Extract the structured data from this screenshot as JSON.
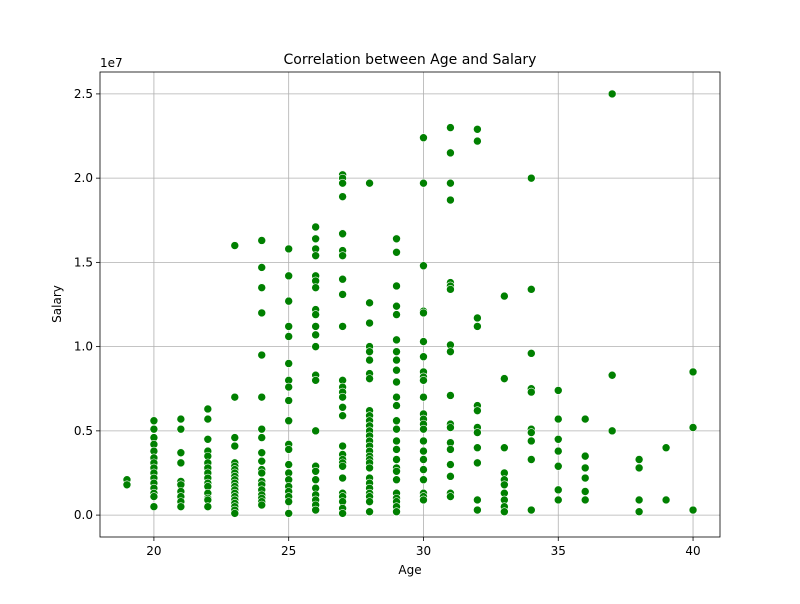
{
  "chart_data": {
    "type": "scatter",
    "title": "Correlation between Age and Salary",
    "xlabel": "Age",
    "ylabel": "Salary",
    "y_offset_label": "1e7",
    "xlim": [
      18,
      41
    ],
    "ylim": [
      -1300000,
      26300000
    ],
    "x_ticks": [
      20,
      25,
      30,
      35,
      40
    ],
    "x_tick_labels": [
      "20",
      "25",
      "30",
      "35",
      "40"
    ],
    "y_ticks": [
      0,
      5000000,
      10000000,
      15000000,
      20000000,
      25000000
    ],
    "y_tick_labels": [
      "0.0",
      "0.5",
      "1.0",
      "1.5",
      "2.0",
      "2.5"
    ],
    "grid": true,
    "marker_color": "#008000",
    "points": [
      [
        19,
        2100000
      ],
      [
        19,
        1800000
      ],
      [
        20,
        5600000
      ],
      [
        20,
        5100000
      ],
      [
        20,
        4600000
      ],
      [
        20,
        4200000
      ],
      [
        20,
        3800000
      ],
      [
        20,
        3400000
      ],
      [
        20,
        3100000
      ],
      [
        20,
        2800000
      ],
      [
        20,
        2500000
      ],
      [
        20,
        2200000
      ],
      [
        20,
        1900000
      ],
      [
        20,
        1600000
      ],
      [
        20,
        1300000
      ],
      [
        20,
        1100000
      ],
      [
        20,
        500000
      ],
      [
        21,
        5700000
      ],
      [
        21,
        5100000
      ],
      [
        21,
        3700000
      ],
      [
        21,
        3100000
      ],
      [
        21,
        2000000
      ],
      [
        21,
        1800000
      ],
      [
        21,
        1400000
      ],
      [
        21,
        1100000
      ],
      [
        21,
        800000
      ],
      [
        21,
        500000
      ],
      [
        22,
        6300000
      ],
      [
        22,
        5700000
      ],
      [
        22,
        4500000
      ],
      [
        22,
        3800000
      ],
      [
        22,
        3500000
      ],
      [
        22,
        3100000
      ],
      [
        22,
        2800000
      ],
      [
        22,
        2500000
      ],
      [
        22,
        2200000
      ],
      [
        22,
        1900000
      ],
      [
        22,
        1700000
      ],
      [
        22,
        1300000
      ],
      [
        22,
        1000000
      ],
      [
        22,
        900000
      ],
      [
        22,
        500000
      ],
      [
        23,
        16000000
      ],
      [
        23,
        7000000
      ],
      [
        23,
        4600000
      ],
      [
        23,
        4100000
      ],
      [
        23,
        3100000
      ],
      [
        23,
        2900000
      ],
      [
        23,
        2700000
      ],
      [
        23,
        2500000
      ],
      [
        23,
        2300000
      ],
      [
        23,
        2100000
      ],
      [
        23,
        1900000
      ],
      [
        23,
        1700000
      ],
      [
        23,
        1500000
      ],
      [
        23,
        1300000
      ],
      [
        23,
        1100000
      ],
      [
        23,
        900000
      ],
      [
        23,
        700000
      ],
      [
        23,
        500000
      ],
      [
        23,
        300000
      ],
      [
        23,
        100000
      ],
      [
        24,
        16300000
      ],
      [
        24,
        14700000
      ],
      [
        24,
        13500000
      ],
      [
        24,
        12000000
      ],
      [
        24,
        9500000
      ],
      [
        24,
        7000000
      ],
      [
        24,
        5100000
      ],
      [
        24,
        4600000
      ],
      [
        24,
        3700000
      ],
      [
        24,
        3200000
      ],
      [
        24,
        2700000
      ],
      [
        24,
        2500000
      ],
      [
        24,
        2000000
      ],
      [
        24,
        1800000
      ],
      [
        24,
        1500000
      ],
      [
        24,
        1200000
      ],
      [
        24,
        1000000
      ],
      [
        24,
        800000
      ],
      [
        24,
        600000
      ],
      [
        25,
        15800000
      ],
      [
        25,
        14200000
      ],
      [
        25,
        12700000
      ],
      [
        25,
        11200000
      ],
      [
        25,
        10600000
      ],
      [
        25,
        9000000
      ],
      [
        25,
        8000000
      ],
      [
        25,
        7600000
      ],
      [
        25,
        6800000
      ],
      [
        25,
        5600000
      ],
      [
        25,
        4200000
      ],
      [
        25,
        3900000
      ],
      [
        25,
        3000000
      ],
      [
        25,
        2500000
      ],
      [
        25,
        2100000
      ],
      [
        25,
        1700000
      ],
      [
        25,
        1400000
      ],
      [
        25,
        1100000
      ],
      [
        25,
        800000
      ],
      [
        25,
        100000
      ],
      [
        26,
        17100000
      ],
      [
        26,
        16400000
      ],
      [
        26,
        15800000
      ],
      [
        26,
        15400000
      ],
      [
        26,
        14200000
      ],
      [
        26,
        13900000
      ],
      [
        26,
        13500000
      ],
      [
        26,
        12200000
      ],
      [
        26,
        11900000
      ],
      [
        26,
        11200000
      ],
      [
        26,
        10700000
      ],
      [
        26,
        10000000
      ],
      [
        26,
        8300000
      ],
      [
        26,
        8000000
      ],
      [
        26,
        5000000
      ],
      [
        26,
        2900000
      ],
      [
        26,
        2600000
      ],
      [
        26,
        2100000
      ],
      [
        26,
        1600000
      ],
      [
        26,
        1200000
      ],
      [
        26,
        900000
      ],
      [
        26,
        600000
      ],
      [
        26,
        300000
      ],
      [
        27,
        20200000
      ],
      [
        27,
        20000000
      ],
      [
        27,
        19700000
      ],
      [
        27,
        18900000
      ],
      [
        27,
        16700000
      ],
      [
        27,
        15700000
      ],
      [
        27,
        15400000
      ],
      [
        27,
        14000000
      ],
      [
        27,
        13100000
      ],
      [
        27,
        11200000
      ],
      [
        27,
        8000000
      ],
      [
        27,
        7600000
      ],
      [
        27,
        7300000
      ],
      [
        27,
        7000000
      ],
      [
        27,
        6400000
      ],
      [
        27,
        5900000
      ],
      [
        27,
        4100000
      ],
      [
        27,
        3600000
      ],
      [
        27,
        3300000
      ],
      [
        27,
        3100000
      ],
      [
        27,
        2900000
      ],
      [
        27,
        2200000
      ],
      [
        27,
        1300000
      ],
      [
        27,
        1100000
      ],
      [
        27,
        800000
      ],
      [
        27,
        400000
      ],
      [
        27,
        100000
      ],
      [
        28,
        19700000
      ],
      [
        28,
        12600000
      ],
      [
        28,
        11400000
      ],
      [
        28,
        10000000
      ],
      [
        28,
        9700000
      ],
      [
        28,
        9200000
      ],
      [
        28,
        8400000
      ],
      [
        28,
        8100000
      ],
      [
        28,
        6200000
      ],
      [
        28,
        5900000
      ],
      [
        28,
        5600000
      ],
      [
        28,
        5300000
      ],
      [
        28,
        5000000
      ],
      [
        28,
        4700000
      ],
      [
        28,
        4400000
      ],
      [
        28,
        4100000
      ],
      [
        28,
        3800000
      ],
      [
        28,
        3500000
      ],
      [
        28,
        3300000
      ],
      [
        28,
        3100000
      ],
      [
        28,
        2800000
      ],
      [
        28,
        2200000
      ],
      [
        28,
        1900000
      ],
      [
        28,
        1600000
      ],
      [
        28,
        1300000
      ],
      [
        28,
        1100000
      ],
      [
        28,
        800000
      ],
      [
        28,
        200000
      ],
      [
        29,
        16400000
      ],
      [
        29,
        15600000
      ],
      [
        29,
        13600000
      ],
      [
        29,
        12400000
      ],
      [
        29,
        11900000
      ],
      [
        29,
        10400000
      ],
      [
        29,
        9700000
      ],
      [
        29,
        9200000
      ],
      [
        29,
        8600000
      ],
      [
        29,
        7900000
      ],
      [
        29,
        7000000
      ],
      [
        29,
        6500000
      ],
      [
        29,
        5600000
      ],
      [
        29,
        5100000
      ],
      [
        29,
        4400000
      ],
      [
        29,
        3900000
      ],
      [
        29,
        3300000
      ],
      [
        29,
        2800000
      ],
      [
        29,
        2600000
      ],
      [
        29,
        2100000
      ],
      [
        29,
        1300000
      ],
      [
        29,
        1000000
      ],
      [
        29,
        800000
      ],
      [
        29,
        500000
      ],
      [
        29,
        200000
      ],
      [
        30,
        22400000
      ],
      [
        30,
        19700000
      ],
      [
        30,
        14800000
      ],
      [
        30,
        12100000
      ],
      [
        30,
        12000000
      ],
      [
        30,
        10300000
      ],
      [
        30,
        9400000
      ],
      [
        30,
        8500000
      ],
      [
        30,
        8200000
      ],
      [
        30,
        8000000
      ],
      [
        30,
        7000000
      ],
      [
        30,
        6000000
      ],
      [
        30,
        5700000
      ],
      [
        30,
        5400000
      ],
      [
        30,
        5100000
      ],
      [
        30,
        4400000
      ],
      [
        30,
        3800000
      ],
      [
        30,
        3300000
      ],
      [
        30,
        2700000
      ],
      [
        30,
        2100000
      ],
      [
        30,
        1300000
      ],
      [
        30,
        1100000
      ],
      [
        30,
        900000
      ],
      [
        31,
        23000000
      ],
      [
        31,
        21500000
      ],
      [
        31,
        19700000
      ],
      [
        31,
        18700000
      ],
      [
        31,
        13800000
      ],
      [
        31,
        13600000
      ],
      [
        31,
        13400000
      ],
      [
        31,
        10100000
      ],
      [
        31,
        9700000
      ],
      [
        31,
        7100000
      ],
      [
        31,
        5400000
      ],
      [
        31,
        5200000
      ],
      [
        31,
        4300000
      ],
      [
        31,
        3900000
      ],
      [
        31,
        3000000
      ],
      [
        31,
        2300000
      ],
      [
        31,
        1300000
      ],
      [
        31,
        1100000
      ],
      [
        32,
        22900000
      ],
      [
        32,
        22200000
      ],
      [
        32,
        11700000
      ],
      [
        32,
        11200000
      ],
      [
        32,
        6500000
      ],
      [
        32,
        6200000
      ],
      [
        32,
        5200000
      ],
      [
        32,
        4900000
      ],
      [
        32,
        4000000
      ],
      [
        32,
        3100000
      ],
      [
        32,
        900000
      ],
      [
        32,
        300000
      ],
      [
        33,
        13000000
      ],
      [
        33,
        8100000
      ],
      [
        33,
        4000000
      ],
      [
        33,
        2500000
      ],
      [
        33,
        2100000
      ],
      [
        33,
        1800000
      ],
      [
        33,
        1300000
      ],
      [
        33,
        900000
      ],
      [
        33,
        500000
      ],
      [
        33,
        200000
      ],
      [
        34,
        20000000
      ],
      [
        34,
        13400000
      ],
      [
        34,
        9600000
      ],
      [
        34,
        7500000
      ],
      [
        34,
        7300000
      ],
      [
        34,
        5100000
      ],
      [
        34,
        4900000
      ],
      [
        34,
        4400000
      ],
      [
        34,
        3300000
      ],
      [
        34,
        300000
      ],
      [
        35,
        7400000
      ],
      [
        35,
        5700000
      ],
      [
        35,
        4500000
      ],
      [
        35,
        3800000
      ],
      [
        35,
        2900000
      ],
      [
        35,
        1500000
      ],
      [
        35,
        900000
      ],
      [
        36,
        5700000
      ],
      [
        36,
        3500000
      ],
      [
        36,
        2800000
      ],
      [
        36,
        2200000
      ],
      [
        36,
        1400000
      ],
      [
        36,
        900000
      ],
      [
        37,
        25000000
      ],
      [
        37,
        8300000
      ],
      [
        37,
        5000000
      ],
      [
        38,
        3300000
      ],
      [
        38,
        2800000
      ],
      [
        38,
        900000
      ],
      [
        38,
        200000
      ],
      [
        39,
        4000000
      ],
      [
        39,
        900000
      ],
      [
        40,
        8500000
      ],
      [
        40,
        5200000
      ],
      [
        40,
        300000
      ]
    ]
  }
}
